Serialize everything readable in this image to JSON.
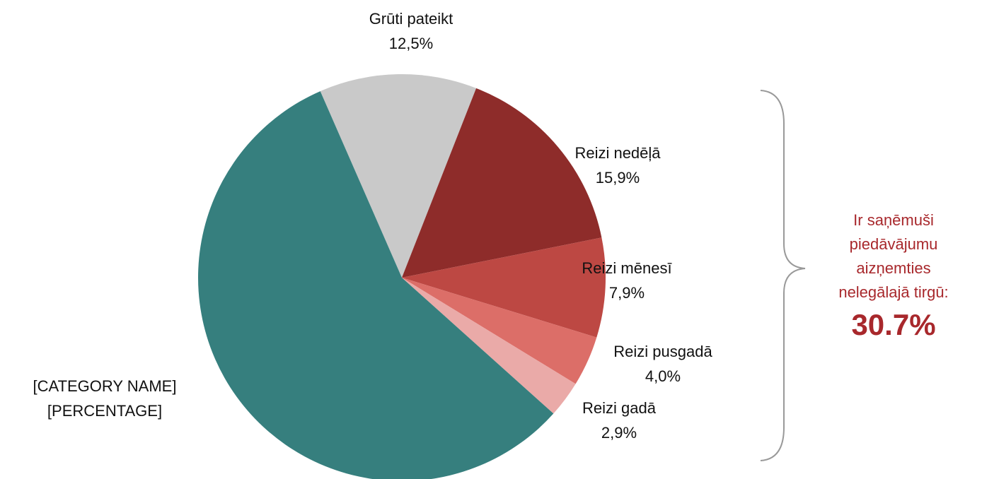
{
  "chart_data": {
    "type": "pie",
    "categories": [
      "Grūti pateikt",
      "Reizi nedēļā",
      "Reizi mēnesī",
      "Reizi pusgadā",
      "Reizi gadā",
      "[CATEGORY NAME]"
    ],
    "values": [
      12.5,
      15.9,
      7.9,
      4.0,
      2.9,
      56.8
    ],
    "value_labels": [
      "12,5%",
      "15,9%",
      "7,9%",
      "4,0%",
      "2,9%",
      "[PERCENTAGE]"
    ],
    "colors": [
      "#c9c9c9",
      "#8e2c2a",
      "#bd4843",
      "#dc6e68",
      "#eaaaa8",
      "#367f7e"
    ],
    "annotation": {
      "lines": [
        "Ir saņēmuši",
        "piedāvājumu",
        "aizņemties",
        "nelegālajā tirgū:"
      ],
      "value": 30.7,
      "value_label": "30.7%"
    }
  }
}
